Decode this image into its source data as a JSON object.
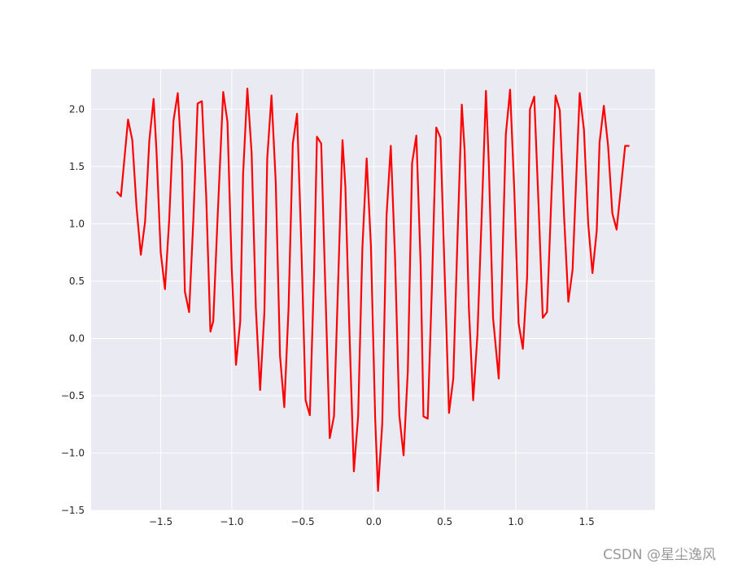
{
  "chart_data": {
    "type": "line",
    "x": [
      -1.81,
      -1.78,
      -1.73,
      -1.7,
      -1.67,
      -1.64,
      -1.61,
      -1.58,
      -1.55,
      -1.53,
      -1.5,
      -1.47,
      -1.44,
      -1.41,
      -1.38,
      -1.35,
      -1.33,
      -1.3,
      -1.27,
      -1.24,
      -1.21,
      -1.18,
      -1.15,
      -1.13,
      -1.1,
      -1.06,
      -1.03,
      -1.0,
      -0.97,
      -0.94,
      -0.92,
      -0.89,
      -0.86,
      -0.83,
      -0.8,
      -0.77,
      -0.75,
      -0.72,
      -0.69,
      -0.66,
      -0.63,
      -0.6,
      -0.57,
      -0.54,
      -0.51,
      -0.48,
      -0.45,
      -0.42,
      -0.4,
      -0.37,
      -0.34,
      -0.31,
      -0.28,
      -0.25,
      -0.22,
      -0.2,
      -0.17,
      -0.14,
      -0.11,
      -0.08,
      -0.05,
      -0.02,
      0.01,
      0.03,
      0.06,
      0.09,
      0.12,
      0.15,
      0.18,
      0.21,
      0.24,
      0.27,
      0.3,
      0.33,
      0.35,
      0.38,
      0.41,
      0.44,
      0.47,
      0.5,
      0.53,
      0.56,
      0.59,
      0.62,
      0.64,
      0.67,
      0.7,
      0.73,
      0.76,
      0.79,
      0.81,
      0.84,
      0.88,
      0.9,
      0.93,
      0.96,
      0.99,
      1.02,
      1.05,
      1.08,
      1.1,
      1.13,
      1.16,
      1.19,
      1.22,
      1.25,
      1.28,
      1.31,
      1.34,
      1.37,
      1.4,
      1.43,
      1.45,
      1.48,
      1.51,
      1.54,
      1.57,
      1.59,
      1.62,
      1.65,
      1.68,
      1.71,
      1.74,
      1.77,
      1.8
    ],
    "series": [
      {
        "color": "#ff0000",
        "values": [
          1.28,
          1.24,
          1.91,
          1.73,
          1.14,
          0.73,
          1.02,
          1.73,
          2.09,
          1.64,
          0.75,
          0.43,
          1.04,
          1.9,
          2.14,
          1.53,
          0.41,
          0.23,
          1.04,
          2.05,
          2.07,
          1.25,
          0.06,
          0.15,
          1.04,
          2.15,
          1.89,
          0.61,
          -0.23,
          0.15,
          1.43,
          2.18,
          1.62,
          0.26,
          -0.45,
          0.23,
          1.57,
          2.12,
          1.36,
          -0.15,
          -0.6,
          0.26,
          1.7,
          1.96,
          0.82,
          -0.54,
          -0.67,
          0.58,
          1.76,
          1.7,
          0.4,
          -0.87,
          -0.68,
          0.52,
          1.73,
          1.33,
          0.01,
          -1.16,
          -0.68,
          0.79,
          1.57,
          0.81,
          -0.7,
          -1.33,
          -0.74,
          1.07,
          1.68,
          0.7,
          -0.67,
          -1.02,
          -0.28,
          1.53,
          1.77,
          0.65,
          -0.68,
          -0.7,
          0.47,
          1.84,
          1.75,
          0.54,
          -0.65,
          -0.35,
          0.89,
          2.04,
          1.64,
          0.26,
          -0.54,
          0.03,
          1.07,
          2.16,
          1.53,
          0.18,
          -0.35,
          0.4,
          1.78,
          2.17,
          1.28,
          0.13,
          -0.09,
          0.54,
          2.0,
          2.11,
          1.18,
          0.18,
          0.23,
          1.21,
          2.12,
          1.99,
          1.07,
          0.32,
          0.6,
          1.53,
          2.14,
          1.82,
          1.0,
          0.57,
          0.94,
          1.71,
          2.03,
          1.68,
          1.09,
          0.95,
          1.31,
          1.68,
          1.68
        ]
      }
    ],
    "xlim": [
      -1.99,
      1.98
    ],
    "ylim": [
      -1.5,
      2.35
    ],
    "xticks": [
      {
        "value": -1.5,
        "label": "−1.5"
      },
      {
        "value": -1.0,
        "label": "−1.0"
      },
      {
        "value": -0.5,
        "label": "−0.5"
      },
      {
        "value": 0,
        "label": "0.0"
      },
      {
        "value": 0.5,
        "label": "0.5"
      },
      {
        "value": 1.0,
        "label": "1.0"
      },
      {
        "value": 1.5,
        "label": "1.5"
      }
    ],
    "yticks": [
      {
        "value": -1.5,
        "label": "−1.5"
      },
      {
        "value": -1.0,
        "label": "−1.0"
      },
      {
        "value": -0.5,
        "label": "−0.5"
      },
      {
        "value": 0,
        "label": "0.0"
      },
      {
        "value": 0.5,
        "label": "0.5"
      },
      {
        "value": 1.0,
        "label": "1.0"
      },
      {
        "value": 1.5,
        "label": "1.5"
      },
      {
        "value": 2.0,
        "label": "2.0"
      }
    ],
    "grid": true,
    "background": "#eaeaf2",
    "watermark": "CSDN @星尘逸风"
  }
}
